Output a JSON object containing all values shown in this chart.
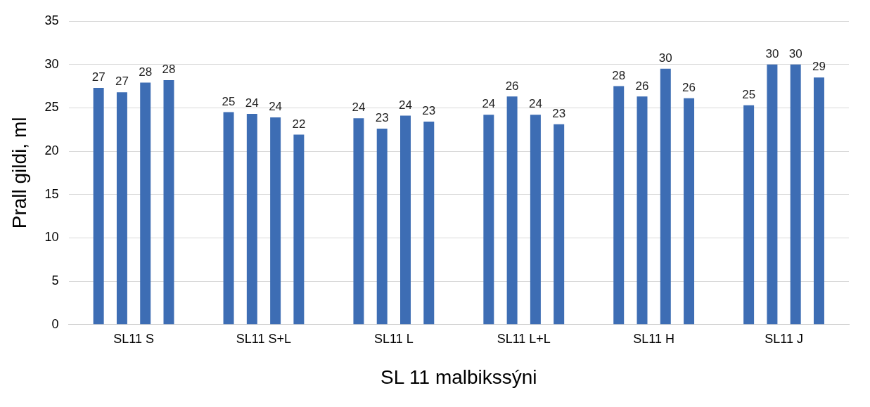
{
  "chart_data": {
    "type": "bar",
    "xlabel": "SL 11 malbikssýni",
    "ylabel": "Prall gildi, ml",
    "categories": [
      "SL11 S",
      "SL11 S+L",
      "SL11 L",
      "SL11 L+L",
      "SL11 H",
      "SL11 J"
    ],
    "series": [
      {
        "color": "#3d6db4",
        "values": [
          27.3,
          24.5,
          23.8,
          24.2,
          27.5,
          25.3
        ],
        "value_labels": [
          "27",
          "25",
          "24",
          "24",
          "28",
          "25"
        ]
      },
      {
        "color": "#3d6db4",
        "values": [
          26.8,
          24.3,
          22.6,
          26.3,
          26.3,
          30.0
        ],
        "value_labels": [
          "27",
          "24",
          "23",
          "26",
          "26",
          "30"
        ]
      },
      {
        "color": "#3d6db4",
        "values": [
          27.9,
          23.9,
          24.1,
          24.2,
          29.5,
          30.0
        ],
        "value_labels": [
          "28",
          "24",
          "24",
          "24",
          "30",
          "30"
        ]
      },
      {
        "color": "#3d6db4",
        "values": [
          28.2,
          21.9,
          23.4,
          23.1,
          26.1,
          28.5
        ],
        "value_labels": [
          "28",
          "22",
          "23",
          "23",
          "26",
          "29"
        ]
      }
    ],
    "ylim": [
      0,
      35
    ],
    "yticks": [
      0,
      5,
      10,
      15,
      20,
      25,
      30,
      35
    ],
    "grid": "y"
  }
}
